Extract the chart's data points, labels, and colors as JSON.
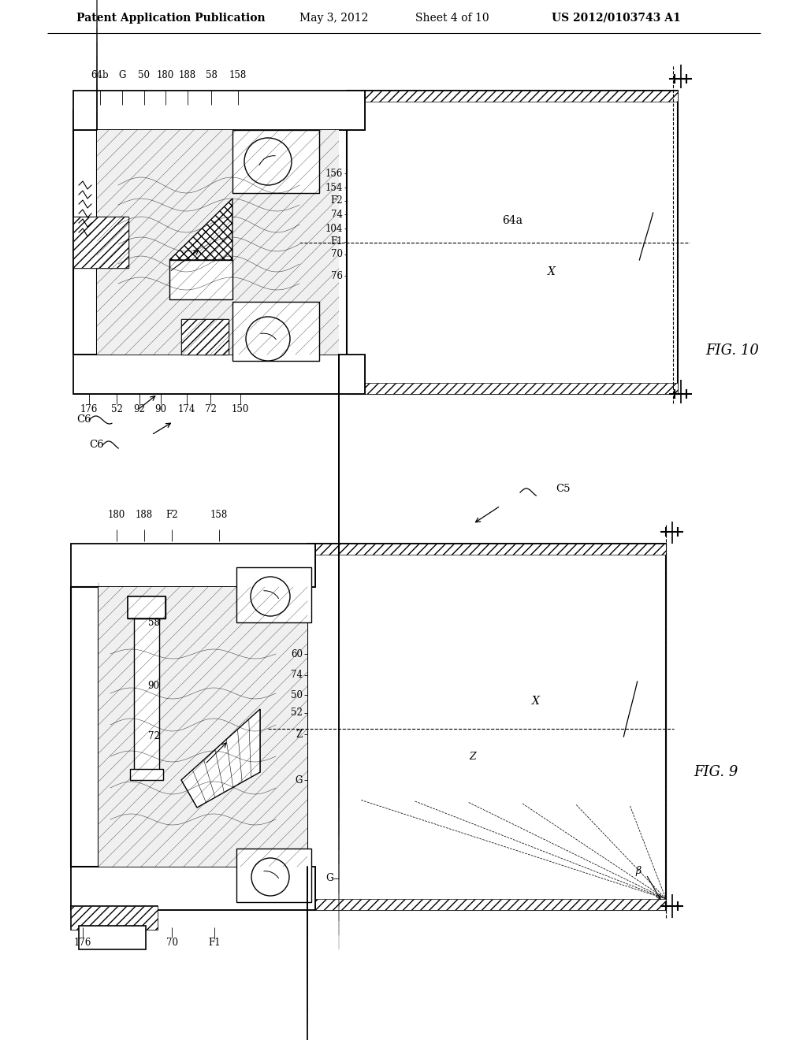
{
  "bg_color": "#ffffff",
  "header_text1": "Patent Application Publication",
  "header_text2": "May 3, 2012",
  "header_text3": "Sheet 4 of 10",
  "header_text4": "US 2012/0103743 A1",
  "fig10_label": "FIG. 10",
  "fig9_label": "FIG. 9",
  "fig10_top_labels": [
    [
      "64b",
      127
    ],
    [
      "G",
      155
    ],
    [
      "50",
      183
    ],
    [
      "180",
      210
    ],
    [
      "188",
      238
    ],
    [
      "58",
      268
    ],
    [
      "158",
      302
    ]
  ],
  "fig10_right_labels": [
    [
      "156",
      450
    ],
    [
      "154",
      437
    ],
    [
      "F2",
      424
    ],
    [
      "74",
      411
    ],
    [
      "104",
      396
    ],
    [
      "F1",
      382
    ],
    [
      "70",
      369
    ],
    [
      "76",
      345
    ]
  ],
  "fig10_bottom_labels": [
    [
      "176",
      113
    ],
    [
      "52",
      148
    ],
    [
      "92",
      177
    ],
    [
      "90",
      204
    ],
    [
      "174",
      237
    ],
    [
      "72",
      267
    ],
    [
      "150",
      305
    ]
  ],
  "fig9_top_labels": [
    [
      "180",
      148
    ],
    [
      "188",
      183
    ],
    [
      "F2",
      218
    ],
    [
      "158",
      278
    ]
  ],
  "fig9_bottom_labels": [
    [
      "176",
      105
    ],
    [
      "70",
      218
    ],
    [
      "F1",
      272
    ]
  ],
  "fig9_right_labels": [
    [
      "60",
      490
    ],
    [
      "74",
      463
    ],
    [
      "50",
      438
    ],
    [
      "52",
      415
    ],
    [
      "Z",
      388
    ],
    [
      "G",
      330
    ]
  ],
  "c6_label": "C6",
  "c5_label": "C5"
}
